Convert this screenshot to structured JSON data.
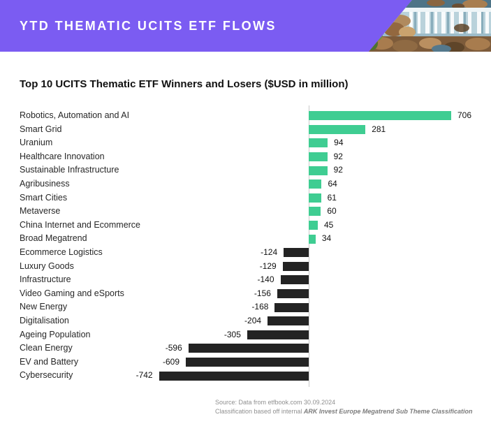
{
  "header": {
    "title": "YTD THEMATIC UCITS ETF FLOWS",
    "accent_color": "#7B5CF2"
  },
  "chart_data": {
    "type": "bar",
    "orientation": "horizontal",
    "title": "Top 10 UCITS Thematic ETF Winners and Losers ($USD in million)",
    "categories": [
      "Robotics, Automation and AI",
      "Smart Grid",
      "Uranium",
      "Healthcare Innovation",
      "Sustainable Infrastructure",
      "Agribusiness",
      "Smart Cities",
      "Metaverse",
      "China Internet and Ecommerce",
      "Broad Megatrend",
      "Ecommerce Logistics",
      "Luxury Goods",
      "Infrastructure",
      "Video Gaming and eSports",
      "New Energy",
      "Digitalisation",
      "Ageing Population",
      "Clean Energy",
      "EV and Battery",
      "Cybersecurity"
    ],
    "values": [
      706,
      281,
      94,
      92,
      92,
      64,
      61,
      60,
      45,
      34,
      -124,
      -129,
      -140,
      -156,
      -168,
      -204,
      -305,
      -596,
      -609,
      -742
    ],
    "positive_color": "#3FCD92",
    "negative_color": "#232323",
    "axis_color": "#c9c9c9",
    "xlim": [
      -800,
      760
    ],
    "grid": false,
    "legend": "none",
    "value_labels": "outside-end"
  },
  "footer": {
    "source_line": "Source: Data from etfbook.com 30.09.2024",
    "classification_prefix": "Classification based off internal ",
    "classification_emphasis": "ARK Invest Europe Megatrend Sub Theme Classification"
  }
}
